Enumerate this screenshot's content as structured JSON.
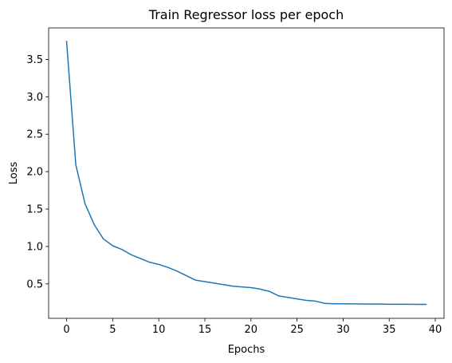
{
  "chart_data": {
    "type": "line",
    "title": "Train Regressor loss per epoch",
    "xlabel": "Epochs",
    "ylabel": "Loss",
    "xlim": [
      -1.95,
      40.95
    ],
    "ylim": [
      0.04,
      3.92
    ],
    "xticks": [
      0,
      5,
      10,
      15,
      20,
      25,
      30,
      35,
      40
    ],
    "yticks": [
      0.5,
      1.0,
      1.5,
      2.0,
      2.5,
      3.0,
      3.5
    ],
    "grid": false,
    "series": [
      {
        "color": "#1f77b4",
        "x": [
          0,
          1,
          2,
          3,
          4,
          5,
          6,
          7,
          8,
          9,
          10,
          11,
          12,
          13,
          14,
          15,
          16,
          17,
          18,
          19,
          20,
          21,
          22,
          23,
          24,
          25,
          26,
          27,
          28,
          29,
          30,
          31,
          32,
          33,
          34,
          35,
          36,
          37,
          38,
          39
        ],
        "values": [
          3.74,
          2.09,
          1.57,
          1.29,
          1.1,
          1.01,
          0.96,
          0.89,
          0.84,
          0.79,
          0.76,
          0.72,
          0.67,
          0.61,
          0.55,
          0.53,
          0.51,
          0.49,
          0.47,
          0.46,
          0.45,
          0.43,
          0.4,
          0.34,
          0.32,
          0.3,
          0.28,
          0.27,
          0.24,
          0.235,
          0.235,
          0.233,
          0.232,
          0.231,
          0.23,
          0.228,
          0.228,
          0.228,
          0.227,
          0.227
        ]
      }
    ]
  }
}
